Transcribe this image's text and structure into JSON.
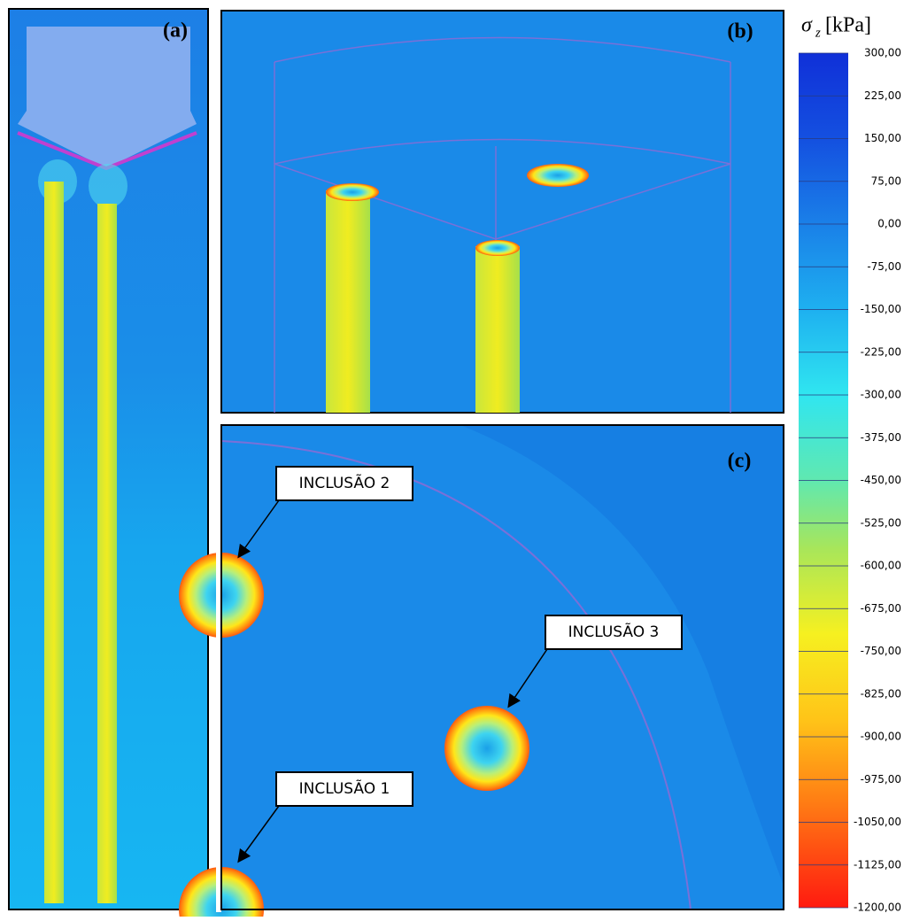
{
  "panels": {
    "a": "(a)",
    "b": "(b)",
    "c": "(c)"
  },
  "callouts": [
    "INCLUSÃO 2",
    "INCLUSÃO 3",
    "INCLUSÃO 1"
  ],
  "colorbar": {
    "symbol": "σ",
    "subscript": "z",
    "unit": "[kPa]",
    "ticks": [
      "300,00",
      "225,00",
      "150,00",
      "75,00",
      "0,00",
      "-75,00",
      "-150,00",
      "-225,00",
      "-300,00",
      "-375,00",
      "-450,00",
      "-525,00",
      "-600,00",
      "-675,00",
      "-750,00",
      "-825,00",
      "-900,00",
      "-975,00",
      "-1050,00",
      "-1125,00",
      "-1200,00"
    ]
  }
}
